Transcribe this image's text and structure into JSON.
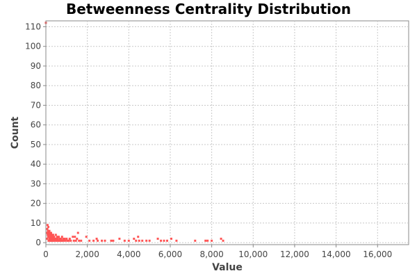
{
  "chart_data": {
    "type": "scatter",
    "title": "Betweenness Centrality Distribution",
    "xlabel": "Value",
    "ylabel": "Count",
    "xlim": [
      0,
      17500
    ],
    "ylim": [
      -1,
      113
    ],
    "grid": true,
    "x_ticks": [
      0,
      2000,
      4000,
      6000,
      8000,
      10000,
      12000,
      14000,
      16000
    ],
    "x_tick_labels": [
      "0",
      "2,000",
      "4,000",
      "6,000",
      "8,000",
      "10,000",
      "12,000",
      "14,000",
      "16,000"
    ],
    "y_ticks": [
      0,
      10,
      20,
      30,
      40,
      50,
      60,
      70,
      80,
      90,
      100,
      110
    ],
    "y_tick_labels": [
      "0",
      "10",
      "20",
      "30",
      "40",
      "50",
      "60",
      "70",
      "80",
      "90",
      "100",
      "110"
    ],
    "color": "#ff5555",
    "points": [
      [
        0,
        112
      ],
      [
        50,
        2
      ],
      [
        60,
        5
      ],
      [
        70,
        7
      ],
      [
        80,
        9
      ],
      [
        90,
        4
      ],
      [
        100,
        6
      ],
      [
        110,
        3
      ],
      [
        120,
        8
      ],
      [
        130,
        1
      ],
      [
        140,
        5
      ],
      [
        150,
        4
      ],
      [
        160,
        2
      ],
      [
        170,
        6
      ],
      [
        180,
        3
      ],
      [
        190,
        5
      ],
      [
        200,
        1
      ],
      [
        210,
        4
      ],
      [
        220,
        2
      ],
      [
        230,
        3
      ],
      [
        240,
        1
      ],
      [
        250,
        5
      ],
      [
        260,
        2
      ],
      [
        270,
        3
      ],
      [
        280,
        1
      ],
      [
        290,
        4
      ],
      [
        300,
        2
      ],
      [
        310,
        1
      ],
      [
        320,
        3
      ],
      [
        330,
        2
      ],
      [
        340,
        1
      ],
      [
        350,
        4
      ],
      [
        360,
        2
      ],
      [
        380,
        1
      ],
      [
        400,
        3
      ],
      [
        420,
        2
      ],
      [
        440,
        1
      ],
      [
        460,
        2
      ],
      [
        480,
        4
      ],
      [
        500,
        1
      ],
      [
        520,
        2
      ],
      [
        540,
        3
      ],
      [
        560,
        1
      ],
      [
        580,
        2
      ],
      [
        600,
        1
      ],
      [
        620,
        3
      ],
      [
        650,
        1
      ],
      [
        680,
        2
      ],
      [
        700,
        1
      ],
      [
        720,
        2
      ],
      [
        750,
        1
      ],
      [
        780,
        3
      ],
      [
        800,
        1
      ],
      [
        830,
        2
      ],
      [
        860,
        1
      ],
      [
        900,
        2
      ],
      [
        950,
        1
      ],
      [
        1000,
        2
      ],
      [
        1050,
        1
      ],
      [
        1100,
        1
      ],
      [
        1150,
        2
      ],
      [
        1200,
        1
      ],
      [
        1300,
        3
      ],
      [
        1350,
        1
      ],
      [
        1400,
        3
      ],
      [
        1450,
        1
      ],
      [
        1500,
        2
      ],
      [
        1550,
        5
      ],
      [
        1600,
        1
      ],
      [
        1700,
        1
      ],
      [
        1950,
        3
      ],
      [
        2100,
        1
      ],
      [
        2300,
        1
      ],
      [
        2450,
        2
      ],
      [
        2500,
        1
      ],
      [
        2700,
        1
      ],
      [
        2850,
        1
      ],
      [
        3150,
        1
      ],
      [
        3250,
        1
      ],
      [
        3550,
        2
      ],
      [
        3800,
        1
      ],
      [
        4000,
        1
      ],
      [
        4250,
        2
      ],
      [
        4350,
        1
      ],
      [
        4450,
        3
      ],
      [
        4500,
        1
      ],
      [
        4650,
        1
      ],
      [
        4850,
        1
      ],
      [
        5000,
        1
      ],
      [
        5400,
        2
      ],
      [
        5550,
        1
      ],
      [
        5700,
        1
      ],
      [
        5850,
        1
      ],
      [
        6050,
        2
      ],
      [
        6300,
        1
      ],
      [
        7200,
        1
      ],
      [
        7700,
        1
      ],
      [
        7800,
        1
      ],
      [
        8000,
        1
      ],
      [
        8450,
        2
      ],
      [
        8550,
        1
      ]
    ]
  }
}
